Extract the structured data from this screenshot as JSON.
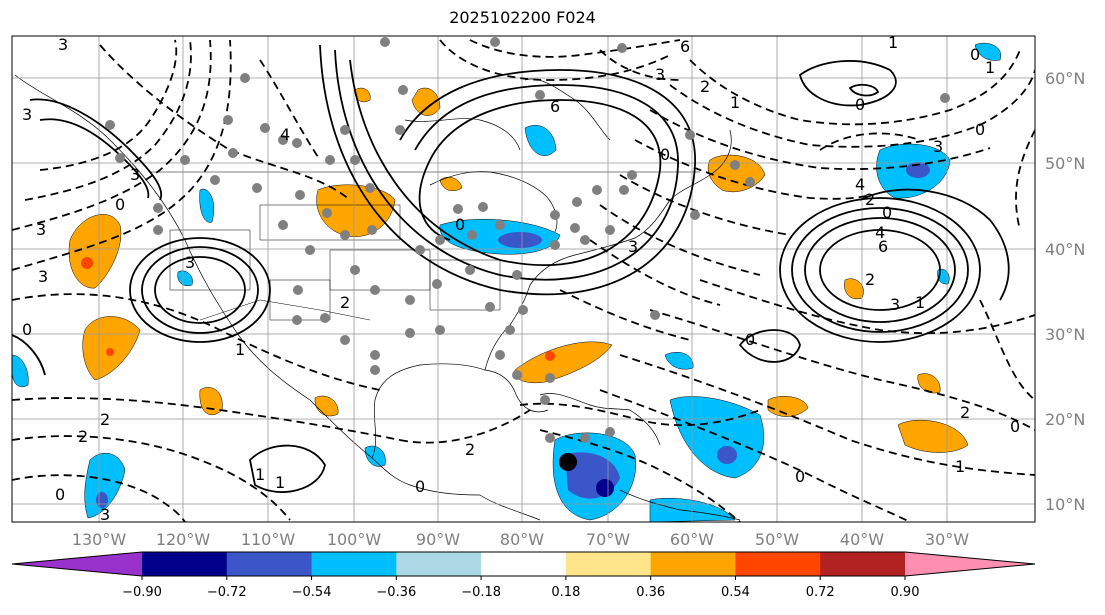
{
  "title": "2025102200 F024",
  "map": {
    "lon_range": [
      -137,
      -16
    ],
    "lat_range": [
      8,
      65
    ],
    "grid": true,
    "lon_ticks": [
      "130°W",
      "120°W",
      "110°W",
      "100°W",
      "90°W",
      "80°W",
      "70°W",
      "60°W",
      "50°W",
      "40°W",
      "30°W"
    ],
    "lon_tick_values": [
      -130,
      -120,
      -110,
      -100,
      -90,
      -80,
      -70,
      -60,
      -50,
      -40,
      -30
    ],
    "lat_ticks": [
      "10°N",
      "20°N",
      "30°N",
      "40°N",
      "50°N",
      "60°N"
    ],
    "lat_tick_values": [
      10,
      20,
      30,
      40,
      50,
      60
    ]
  },
  "colorbar": {
    "labels": [
      "−0.90",
      "−0.72",
      "−0.54",
      "−0.36",
      "−0.18",
      "0.18",
      "0.36",
      "0.54",
      "0.72",
      "0.90"
    ],
    "colors": [
      "#9932cc",
      "#00008b",
      "#3b56c8",
      "#00bfff",
      "#add8e6",
      "#ffffff",
      "#ffe58a",
      "#ffa500",
      "#ff4500",
      "#b22222",
      "#ff8fb1"
    ]
  },
  "contour_labels": [
    "3",
    "3",
    "3",
    "6",
    "2",
    "1",
    "0",
    "0",
    "3",
    "1",
    "3",
    "4",
    "0",
    "3",
    "4",
    "3",
    "6",
    "4",
    "0",
    "3",
    "2",
    "2",
    "0",
    "3",
    "1",
    "0",
    "1",
    "2",
    "1",
    "0",
    "0",
    "3",
    "6",
    "3",
    "0",
    "2",
    "1",
    "2",
    "0",
    "0",
    "1",
    "0",
    "2",
    "2",
    "1",
    "0"
  ]
}
